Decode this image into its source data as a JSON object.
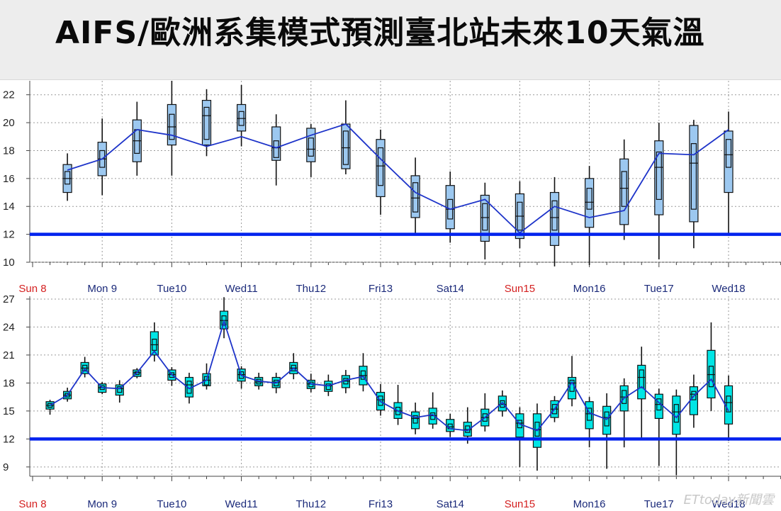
{
  "title": "AIFS/歐洲系集模式預測臺北站未來10天氣溫",
  "watermark": "ETtoday新聞雲",
  "colors": {
    "box_top": "#9cc8f0",
    "box_bottom": "#00e5e5",
    "mean_line": "#1d33c9",
    "threshold": "#0022ee",
    "weekend_label": "#d42020",
    "weekday_label": "#1b2a7a",
    "whisker": "#111111",
    "grid": "#9a9a9a"
  },
  "x_labels": [
    {
      "label": "Sun 8",
      "weekend": true
    },
    {
      "label": "Mon 9",
      "weekend": false
    },
    {
      "label": "Tue10",
      "weekend": false
    },
    {
      "label": "Wed11",
      "weekend": false
    },
    {
      "label": "Thu12",
      "weekend": false
    },
    {
      "label": "Fri13",
      "weekend": false
    },
    {
      "label": "Sat14",
      "weekend": false
    },
    {
      "label": "Sun15",
      "weekend": true
    },
    {
      "label": "Mon16",
      "weekend": false
    },
    {
      "label": "Tue17",
      "weekend": false
    },
    {
      "label": "Wed18",
      "weekend": false
    }
  ],
  "chart_data": [
    {
      "type": "boxplot",
      "panel": "top",
      "ylim": [
        10,
        23
      ],
      "yticks": [
        10,
        12,
        14,
        16,
        18,
        20,
        22
      ],
      "threshold": 12,
      "grid": true,
      "x": [
        0.5,
        1,
        1.5,
        2,
        2.5,
        3,
        3.5,
        4,
        4.5,
        5,
        5.5,
        6,
        6.5,
        7,
        7.5,
        8,
        8.5,
        9,
        9.5,
        10
      ],
      "mean": [
        16.6,
        17.4,
        19.5,
        19.1,
        18.3,
        19.0,
        18.2,
        19.1,
        19.9,
        17.4,
        15.0,
        13.8,
        14.5,
        12.1,
        14.0,
        13.2,
        13.7,
        17.8,
        17.7,
        19.5
      ],
      "min": [
        14.4,
        14.8,
        16.2,
        16.2,
        17.6,
        18.3,
        15.5,
        16.1,
        16.3,
        13.4,
        12.1,
        11.4,
        10.2,
        11.0,
        9.7,
        9.8,
        11.6,
        10.2,
        11.0,
        11.9
      ],
      "p10": [
        15.0,
        16.2,
        17.2,
        18.4,
        18.4,
        19.4,
        17.3,
        17.2,
        16.7,
        14.7,
        13.2,
        12.4,
        11.5,
        11.7,
        11.2,
        12.5,
        12.7,
        13.4,
        12.9,
        15.0
      ],
      "p25": [
        15.6,
        16.8,
        17.8,
        18.8,
        18.8,
        19.8,
        17.5,
        17.6,
        17.0,
        15.5,
        13.6,
        13.1,
        12.3,
        12.3,
        12.3,
        13.8,
        14.0,
        14.5,
        13.8,
        16.8
      ],
      "median": [
        16.0,
        17.4,
        18.7,
        19.7,
        20.5,
        20.3,
        18.2,
        18.1,
        18.2,
        16.9,
        14.6,
        13.8,
        13.2,
        13.3,
        13.2,
        14.3,
        15.3,
        16.8,
        17.1,
        17.7
      ],
      "p75": [
        16.5,
        18.0,
        19.5,
        20.6,
        21.1,
        20.8,
        18.7,
        18.9,
        19.4,
        18.2,
        15.7,
        14.5,
        14.2,
        14.3,
        14.4,
        15.3,
        16.5,
        17.9,
        18.5,
        18.8
      ],
      "p90": [
        17.0,
        18.6,
        20.2,
        21.3,
        21.6,
        21.3,
        19.7,
        19.6,
        19.9,
        18.8,
        16.2,
        15.5,
        14.8,
        14.9,
        15.0,
        16.0,
        17.4,
        18.7,
        19.8,
        19.4
      ],
      "max": [
        17.8,
        20.3,
        21.5,
        23.0,
        22.4,
        22.7,
        20.6,
        19.9,
        21.6,
        19.5,
        17.5,
        16.5,
        15.7,
        15.8,
        16.1,
        16.9,
        18.8,
        20.0,
        20.2,
        20.8
      ]
    },
    {
      "type": "boxplot",
      "panel": "bottom",
      "ylim": [
        8,
        27.3
      ],
      "yticks": [
        9,
        12,
        15,
        18,
        21,
        24,
        27
      ],
      "threshold": 12,
      "grid": true,
      "x": [
        0.25,
        0.5,
        0.75,
        1,
        1.25,
        1.5,
        1.75,
        2,
        2.25,
        2.5,
        2.75,
        3,
        3.25,
        3.5,
        3.75,
        4,
        4.25,
        4.5,
        4.75,
        5,
        5.25,
        5.5,
        5.75,
        6,
        6.25,
        6.5,
        6.75,
        7,
        7.25,
        7.5,
        7.75,
        8,
        8.25,
        8.5,
        8.75,
        9,
        9.25,
        9.5,
        9.75,
        10
      ],
      "mean": [
        15.6,
        16.7,
        19.5,
        17.5,
        17.4,
        19.1,
        21.4,
        18.9,
        17.4,
        18.3,
        24.6,
        18.8,
        18.2,
        18.0,
        19.6,
        17.9,
        17.7,
        18.3,
        18.7,
        16.0,
        15.0,
        14.3,
        14.6,
        13.1,
        12.9,
        14.3,
        15.9,
        13.6,
        12.9,
        15.2,
        18.1,
        14.8,
        14.1,
        16.4,
        17.6,
        15.9,
        14.3,
        16.6,
        18.4,
        15.0
      ],
      "min": [
        14.6,
        16.0,
        18.6,
        16.8,
        15.9,
        18.5,
        20.3,
        17.7,
        15.8,
        17.3,
        22.8,
        17.4,
        17.3,
        16.9,
        18.4,
        17.0,
        16.6,
        16.9,
        17.1,
        14.5,
        13.5,
        12.5,
        13.1,
        12.2,
        11.5,
        12.8,
        14.4,
        9.0,
        8.6,
        13.8,
        15.5,
        11.1,
        8.8,
        11.1,
        12.1,
        9.1,
        8.1,
        13.2,
        15.0,
        11.8
      ],
      "p10": [
        15.2,
        16.3,
        19.0,
        17.0,
        16.7,
        18.7,
        21.0,
        18.3,
        16.5,
        17.7,
        23.8,
        18.2,
        17.7,
        17.5,
        19.0,
        17.4,
        17.1,
        17.5,
        17.8,
        15.1,
        14.2,
        13.1,
        13.6,
        12.8,
        12.3,
        13.4,
        15.0,
        12.2,
        11.1,
        14.3,
        16.3,
        13.1,
        12.5,
        15.0,
        16.3,
        14.2,
        12.5,
        14.6,
        16.4,
        13.6
      ],
      "p25": [
        15.4,
        16.5,
        19.3,
        17.3,
        17.0,
        18.9,
        21.5,
        18.6,
        16.9,
        17.8,
        24.2,
        18.5,
        17.9,
        17.7,
        19.3,
        17.6,
        17.3,
        17.9,
        18.4,
        15.6,
        14.6,
        13.7,
        14.1,
        13.1,
        12.7,
        13.9,
        15.4,
        13.2,
        12.3,
        14.7,
        17.1,
        14.0,
        13.4,
        15.8,
        17.5,
        15.1,
        13.8,
        16.2,
        17.6,
        14.9
      ],
      "median": [
        15.6,
        16.7,
        19.6,
        17.5,
        17.4,
        19.1,
        22.1,
        18.9,
        17.8,
        18.3,
        24.7,
        18.9,
        18.1,
        18.1,
        19.6,
        17.9,
        17.7,
        18.2,
        18.8,
        16.2,
        15.0,
        14.2,
        14.5,
        13.3,
        13.0,
        14.3,
        15.7,
        13.7,
        13.0,
        15.2,
        18.0,
        14.7,
        14.3,
        16.5,
        18.6,
        15.7,
        14.9,
        16.8,
        18.9,
        15.9
      ],
      "p75": [
        15.8,
        16.9,
        19.9,
        17.7,
        17.6,
        19.2,
        22.7,
        19.1,
        18.2,
        18.7,
        25.2,
        19.2,
        18.4,
        18.3,
        19.9,
        18.1,
        17.9,
        18.5,
        19.3,
        16.6,
        15.4,
        14.5,
        14.8,
        13.6,
        13.4,
        14.7,
        16.1,
        14.0,
        13.8,
        15.7,
        18.3,
        15.3,
        14.9,
        17.2,
        19.4,
        16.3,
        15.7,
        17.1,
        19.8,
        16.6
      ],
      "p90": [
        16.0,
        17.1,
        20.2,
        17.9,
        17.8,
        19.4,
        23.5,
        19.4,
        18.6,
        19.0,
        25.7,
        19.5,
        18.6,
        18.6,
        20.2,
        18.3,
        18.2,
        18.8,
        19.8,
        17.0,
        15.9,
        14.9,
        15.3,
        14.1,
        13.8,
        15.2,
        16.6,
        14.7,
        14.7,
        16.1,
        18.6,
        16.0,
        15.5,
        17.7,
        19.9,
        16.8,
        16.6,
        17.6,
        21.5,
        17.7
      ],
      "max": [
        16.2,
        17.5,
        20.8,
        18.1,
        18.3,
        19.6,
        24.5,
        19.7,
        19.1,
        20.1,
        27.2,
        19.8,
        19.1,
        19.1,
        21.2,
        19.0,
        18.9,
        19.4,
        21.2,
        17.9,
        17.8,
        15.9,
        17.0,
        14.7,
        15.4,
        16.9,
        17.2,
        15.4,
        15.8,
        16.6,
        20.9,
        16.5,
        16.9,
        18.5,
        21.9,
        17.4,
        17.3,
        18.9,
        24.5,
        18.8
      ]
    }
  ]
}
